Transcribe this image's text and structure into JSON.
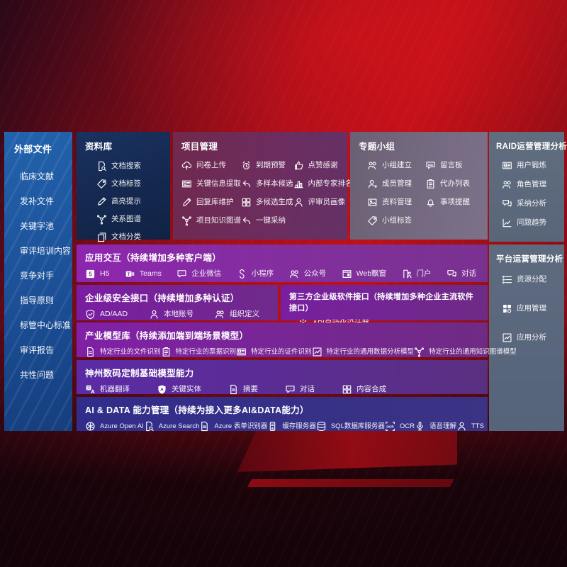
{
  "colors": {
    "background_red": "#bf1019",
    "sidebar_blue": "#1b4f96",
    "library_navy": "#14284e",
    "project_maroon": "#6c2d5e",
    "topic_gray": "#766b82",
    "ops_slate": "#5c697d",
    "interaction_purple": "#8d26af",
    "security_purple": "#7a1da2",
    "model_violet": "#5b2aa6",
    "aidata_indigo": "#302d8b"
  },
  "sidebar": {
    "title": "外部文件",
    "items": [
      {
        "label": "临床文献"
      },
      {
        "label": "发补文件"
      },
      {
        "label": "关键字池"
      },
      {
        "label": "审评培训内容"
      },
      {
        "label": "竞争对手"
      },
      {
        "label": "指导原则"
      },
      {
        "label": "标管中心标准"
      },
      {
        "label": "审评报告"
      },
      {
        "label": "共性问题"
      }
    ]
  },
  "library": {
    "title": "资料库",
    "items": [
      {
        "label": "文档搜索",
        "icon": "doc-search"
      },
      {
        "label": "文档标签",
        "icon": "tag"
      },
      {
        "label": "高亮提示",
        "icon": "pencil"
      },
      {
        "label": "关系图谱",
        "icon": "network"
      },
      {
        "label": "文档分类",
        "icon": "copy"
      }
    ]
  },
  "project": {
    "title": "项目管理",
    "items": [
      {
        "label": "问卷上传",
        "icon": "cloud-upload"
      },
      {
        "label": "到期预警",
        "icon": "alarm"
      },
      {
        "label": "点赞感谢",
        "icon": "thumbs-up"
      },
      {
        "label": "关键信息提取",
        "icon": "idcard"
      },
      {
        "label": "多样本候选",
        "icon": "reply"
      },
      {
        "label": "内部专家排名",
        "icon": "rank"
      },
      {
        "label": "回复库维护",
        "icon": "pencil"
      },
      {
        "label": "多候选生成",
        "icon": "puzzle"
      },
      {
        "label": "评审员画像",
        "icon": "person"
      },
      {
        "label": "项目知识图谱",
        "icon": "network"
      },
      {
        "label": "一键采纳",
        "icon": "reply"
      }
    ]
  },
  "topic": {
    "title": "专题小组",
    "items": [
      {
        "label": "小组建立",
        "icon": "people"
      },
      {
        "label": "留言板",
        "icon": "bbs"
      },
      {
        "label": "成员管理",
        "icon": "person-add"
      },
      {
        "label": "代办列表",
        "icon": "clipboard"
      },
      {
        "label": "资料管理",
        "icon": "photo"
      },
      {
        "label": "事项提醒",
        "icon": "bell"
      },
      {
        "label": "小组标签",
        "icon": "tag"
      }
    ]
  },
  "raid": {
    "title": "RAID运营管理分析",
    "items": [
      {
        "label": "用户锻炼",
        "icon": "idcard"
      },
      {
        "label": "角色管理",
        "icon": "people"
      },
      {
        "label": "采纳分析",
        "icon": "qa"
      },
      {
        "label": "问题趋势",
        "icon": "chart"
      }
    ]
  },
  "platform": {
    "title": "平台运营管理分析",
    "items": [
      {
        "label": "资源分配",
        "icon": "list"
      },
      {
        "label": "应用管理",
        "icon": "grid"
      },
      {
        "label": "应用分析",
        "icon": "chart-box"
      }
    ]
  },
  "interaction": {
    "title": "应用交互（持续增加多种客户端）",
    "items": [
      {
        "label": "H5",
        "icon": "h5"
      },
      {
        "label": "Teams",
        "icon": "teams"
      },
      {
        "label": "企业微信",
        "icon": "chat"
      },
      {
        "label": "小程序",
        "icon": "scurve"
      },
      {
        "label": "公众号",
        "icon": "people"
      },
      {
        "label": "Web飘窗",
        "icon": "window"
      },
      {
        "label": "门户",
        "icon": "portal"
      },
      {
        "label": "对话",
        "icon": "qa"
      }
    ]
  },
  "security": {
    "title": "企业级安全接口（持续增加多种认证）",
    "items": [
      {
        "label": "AD/AAD",
        "icon": "shield"
      },
      {
        "label": "本地账号",
        "icon": "person"
      },
      {
        "label": "组织定义",
        "icon": "people"
      }
    ]
  },
  "thirdparty": {
    "title": "第三方企业级软件接口（持续增加多种企业主流软件接口）",
    "items": [
      {
        "label": "API自动化设计器",
        "icon": "gear"
      }
    ]
  },
  "industry": {
    "title": "产业模型库（持续添加端到端场景模型）",
    "items": [
      {
        "label": "特定行业的文件识别",
        "icon": "doc"
      },
      {
        "label": "特定行业的票据识别",
        "icon": "clipboard"
      },
      {
        "label": "特定行业的证件识别",
        "icon": "idcard"
      },
      {
        "label": "特定行业的通用数据分析模型",
        "icon": "chart-box"
      },
      {
        "label": "特定行业的通用知识图谱模型",
        "icon": "network"
      }
    ]
  },
  "basemodel": {
    "title": "神州数码定制基础模型能力",
    "items": [
      {
        "label": "机器翻译",
        "icon": "translate"
      },
      {
        "label": "关键实体",
        "icon": "shield-a"
      },
      {
        "label": "摘要",
        "icon": "doc"
      },
      {
        "label": "对话",
        "icon": "chat"
      },
      {
        "label": "内容合成",
        "icon": "puzzle"
      }
    ]
  },
  "aidata": {
    "title": "AI & DATA 能力管理（持续为接入更多AI&DATA能力）",
    "items": [
      {
        "label": "Azure Open AI",
        "icon": "openai"
      },
      {
        "label": "Azure Search",
        "icon": "doc-search"
      },
      {
        "label": "Azure 表单识别器",
        "icon": "doc"
      },
      {
        "label": "缓存服务器",
        "icon": "server"
      },
      {
        "label": "SQL数据库服务器",
        "icon": "db"
      },
      {
        "label": "OCR",
        "icon": "ocr"
      },
      {
        "label": "语音理解",
        "icon": "mic"
      },
      {
        "label": "TTS",
        "icon": "person"
      }
    ]
  }
}
